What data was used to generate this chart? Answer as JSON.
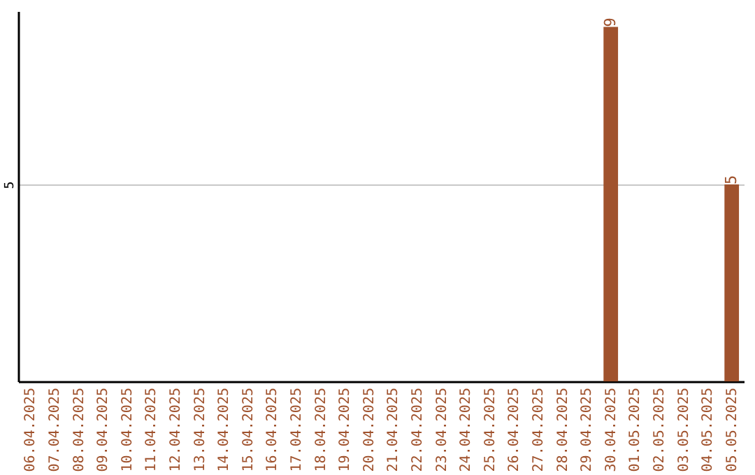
{
  "chart_data": {
    "type": "bar",
    "categories": [
      "06.04.2025",
      "07.04.2025",
      "08.04.2025",
      "09.04.2025",
      "10.04.2025",
      "11.04.2025",
      "12.04.2025",
      "13.04.2025",
      "14.04.2025",
      "15.04.2025",
      "16.04.2025",
      "17.04.2025",
      "18.04.2025",
      "19.04.2025",
      "20.04.2025",
      "21.04.2025",
      "22.04.2025",
      "23.04.2025",
      "24.04.2025",
      "25.04.2025",
      "26.04.2025",
      "27.04.2025",
      "28.04.2025",
      "29.04.2025",
      "30.04.2025",
      "01.05.2025",
      "02.05.2025",
      "03.05.2025",
      "04.05.2025",
      "05.05.2025"
    ],
    "values": [
      null,
      null,
      null,
      null,
      null,
      null,
      null,
      null,
      null,
      null,
      null,
      null,
      null,
      null,
      null,
      null,
      null,
      null,
      null,
      null,
      null,
      null,
      null,
      null,
      9,
      null,
      null,
      null,
      null,
      5
    ],
    "color": "#a0522d",
    "ylim": [
      0,
      9.4
    ],
    "yticks": [
      5
    ],
    "grid": "y",
    "data_labels": true
  }
}
